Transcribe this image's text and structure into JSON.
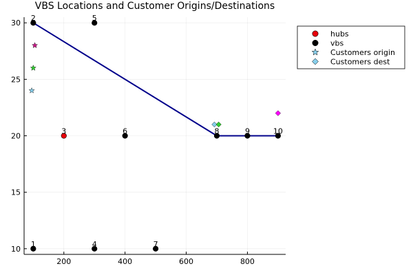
{
  "chart_data": {
    "type": "scatter",
    "title": "VBS Locations and Customer Origins/Destinations",
    "xlabel": "",
    "ylabel": "",
    "xlim": [
      70,
      925
    ],
    "ylim": [
      9.5,
      30.5
    ],
    "xticks": [
      200,
      400,
      600,
      800
    ],
    "yticks": [
      10,
      15,
      20,
      25,
      30
    ],
    "grid": true,
    "legend_position": "top-right",
    "colors": {
      "hubs": "#e8000b",
      "vbs": "#000000",
      "route": "#00008b",
      "axis": "#000000"
    },
    "hubs": {
      "name": "hubs",
      "points": [
        {
          "x": 200,
          "y": 20,
          "label": "3"
        }
      ]
    },
    "vbs": {
      "name": "vbs",
      "points": [
        {
          "x": 100,
          "y": 10,
          "label": "1"
        },
        {
          "x": 100,
          "y": 30,
          "label": "2"
        },
        {
          "x": 300,
          "y": 10,
          "label": "4"
        },
        {
          "x": 300,
          "y": 30,
          "label": "5"
        },
        {
          "x": 400,
          "y": 20,
          "label": "6"
        },
        {
          "x": 500,
          "y": 10,
          "label": "7"
        },
        {
          "x": 700,
          "y": 20,
          "label": "8"
        },
        {
          "x": 800,
          "y": 20,
          "label": "9"
        },
        {
          "x": 900,
          "y": 20,
          "label": "10"
        }
      ]
    },
    "customers_origin": {
      "name": "Customers origin",
      "points": [
        {
          "x": 95,
          "y": 24,
          "color": "#87ceeb"
        },
        {
          "x": 100,
          "y": 26,
          "color": "#32cd32"
        },
        {
          "x": 105,
          "y": 28,
          "color": "#c71585"
        }
      ]
    },
    "customers_dest": {
      "name": "Customers dest",
      "points": [
        {
          "x": 692,
          "y": 21,
          "color": "#87ceeb"
        },
        {
          "x": 706,
          "y": 21,
          "color": "#32cd32"
        },
        {
          "x": 900,
          "y": 22,
          "color": "#ff00ff"
        }
      ]
    },
    "route": [
      {
        "x": 100,
        "y": 30
      },
      {
        "x": 700,
        "y": 20
      },
      {
        "x": 800,
        "y": 20
      },
      {
        "x": 900,
        "y": 20
      }
    ],
    "legend": [
      {
        "label": "hubs",
        "marker": "circle",
        "color": "#e8000b"
      },
      {
        "label": "vbs",
        "marker": "circle",
        "color": "#000000"
      },
      {
        "label": "Customers origin",
        "marker": "star",
        "color": "#87ceeb"
      },
      {
        "label": "Customers dest",
        "marker": "diamond",
        "color": "#87ceeb"
      }
    ]
  }
}
